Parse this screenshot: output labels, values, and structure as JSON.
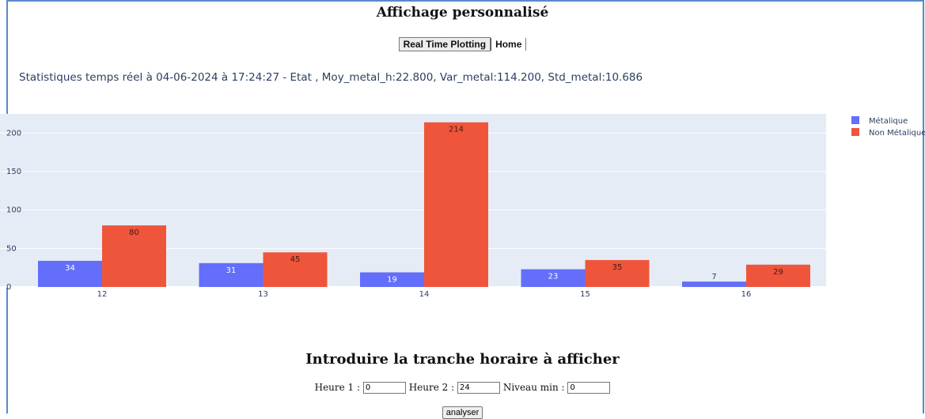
{
  "page": {
    "title": "Affichage personnalisé",
    "nav": {
      "realtime_label": "Real Time Plotting",
      "home_label": "Home"
    },
    "stats_text": "Statistiques temps réel à 04-06-2024 à 17:24:27 - Etat , Moy_metal_h:22.800, Var_metal:114.200, Std_metal:10.686"
  },
  "chart_data": {
    "type": "bar",
    "categories": [
      "12",
      "13",
      "14",
      "15",
      "16"
    ],
    "series": [
      {
        "name": "Métalique",
        "values": [
          34,
          31,
          19,
          23,
          7
        ],
        "color": "#636efa"
      },
      {
        "name": "Non Métalique",
        "values": [
          80,
          45,
          214,
          35,
          29
        ],
        "color": "#ef553b"
      }
    ],
    "yticks": [
      0,
      50,
      100,
      150,
      200
    ],
    "ylim": [
      0,
      225
    ],
    "grid": true,
    "legend_position": "top-right"
  },
  "form": {
    "title": "Introduire la tranche horaire à afficher",
    "heure1_label": "Heure 1 :",
    "heure1_value": "0",
    "heure2_label": "Heure 2 :",
    "heure2_value": "24",
    "niveau_label": "Niveau min :",
    "niveau_value": "0",
    "submit_label": "analyser"
  }
}
